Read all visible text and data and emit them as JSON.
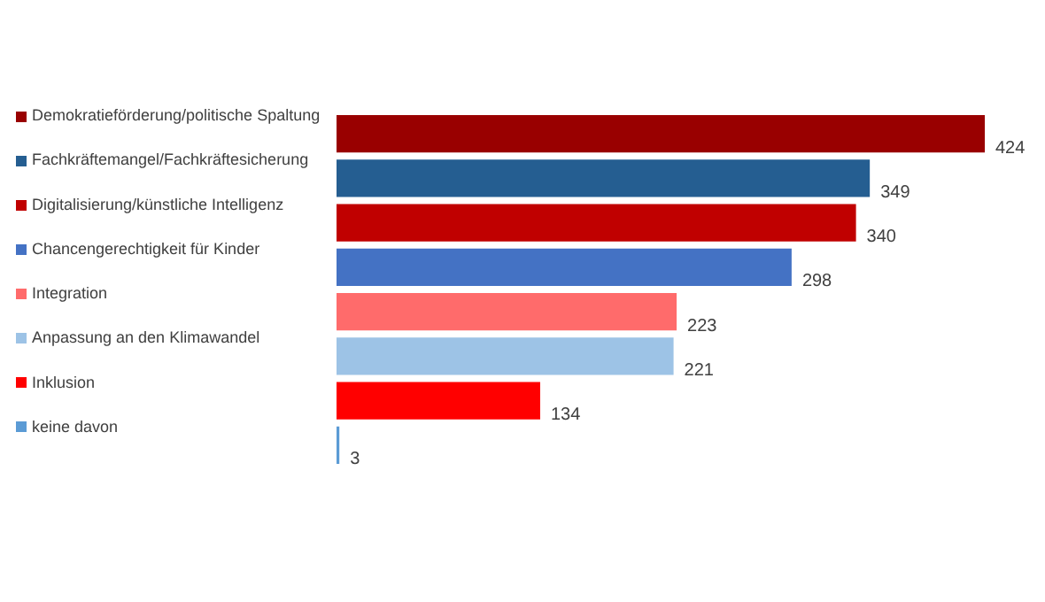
{
  "chart_data": {
    "type": "bar",
    "orientation": "horizontal",
    "categories": [
      "Demokratieförderung/politische Spaltung",
      "Fachkräftemangel/Fachkräftesicherung",
      "Digitalisierung/künstliche Intelligenz",
      "Chancengerechtigkeit für Kinder",
      "Integration",
      "Anpassung an den Klimawandel",
      "Inklusion",
      "keine davon"
    ],
    "values": [
      424,
      349,
      340,
      298,
      223,
      221,
      134,
      3
    ],
    "colors": [
      "#990000",
      "#255e91",
      "#c00000",
      "#4472c4",
      "#ff6b6b",
      "#9dc3e6",
      "#ff0000",
      "#5b9bd5"
    ],
    "data_labels": true,
    "grid": false,
    "legend": false
  }
}
